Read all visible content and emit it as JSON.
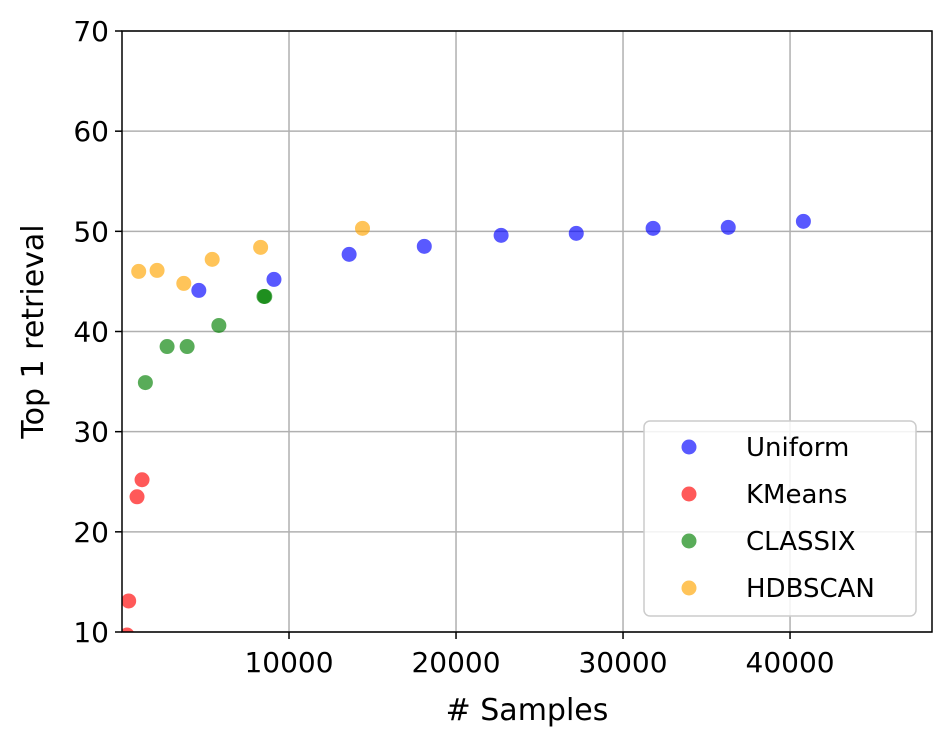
{
  "chart_data": {
    "type": "scatter",
    "xlabel": "# Samples",
    "ylabel": "Top 1 retrieval",
    "xlim": [
      0,
      48500
    ],
    "ylim": [
      10,
      70
    ],
    "xticks": [
      10000,
      20000,
      30000,
      40000
    ],
    "yticks": [
      10,
      20,
      30,
      40,
      50,
      60,
      70
    ],
    "grid": true,
    "legend_position": "bottom-right",
    "series": [
      {
        "name": "Uniform",
        "color": "#0000ff",
        "points": [
          {
            "x": 4600,
            "y": 44.1
          },
          {
            "x": 9100,
            "y": 45.2
          },
          {
            "x": 13600,
            "y": 47.7
          },
          {
            "x": 18100,
            "y": 48.5
          },
          {
            "x": 22700,
            "y": 49.6
          },
          {
            "x": 27200,
            "y": 49.8
          },
          {
            "x": 31800,
            "y": 50.3
          },
          {
            "x": 36300,
            "y": 50.4
          },
          {
            "x": 40800,
            "y": 51.0
          }
        ]
      },
      {
        "name": "KMeans",
        "color": "#ff0000",
        "points": [
          {
            "x": 300,
            "y": 9.7
          },
          {
            "x": 400,
            "y": 13.1
          },
          {
            "x": 900,
            "y": 23.5
          },
          {
            "x": 1200,
            "y": 25.2
          }
        ]
      },
      {
        "name": "CLASSIX",
        "color": "#008000",
        "points": [
          {
            "x": 1400,
            "y": 34.9
          },
          {
            "x": 2700,
            "y": 38.5
          },
          {
            "x": 3900,
            "y": 38.5
          },
          {
            "x": 5800,
            "y": 40.6
          },
          {
            "x": 8500,
            "y": 43.5
          },
          {
            "x": 8550,
            "y": 43.5
          }
        ]
      },
      {
        "name": "HDBSCAN",
        "color": "#ffa500",
        "points": [
          {
            "x": 1000,
            "y": 46.0
          },
          {
            "x": 2100,
            "y": 46.1
          },
          {
            "x": 3700,
            "y": 44.8
          },
          {
            "x": 5400,
            "y": 47.2
          },
          {
            "x": 8300,
            "y": 48.4
          },
          {
            "x": 14400,
            "y": 50.3
          }
        ]
      }
    ]
  }
}
